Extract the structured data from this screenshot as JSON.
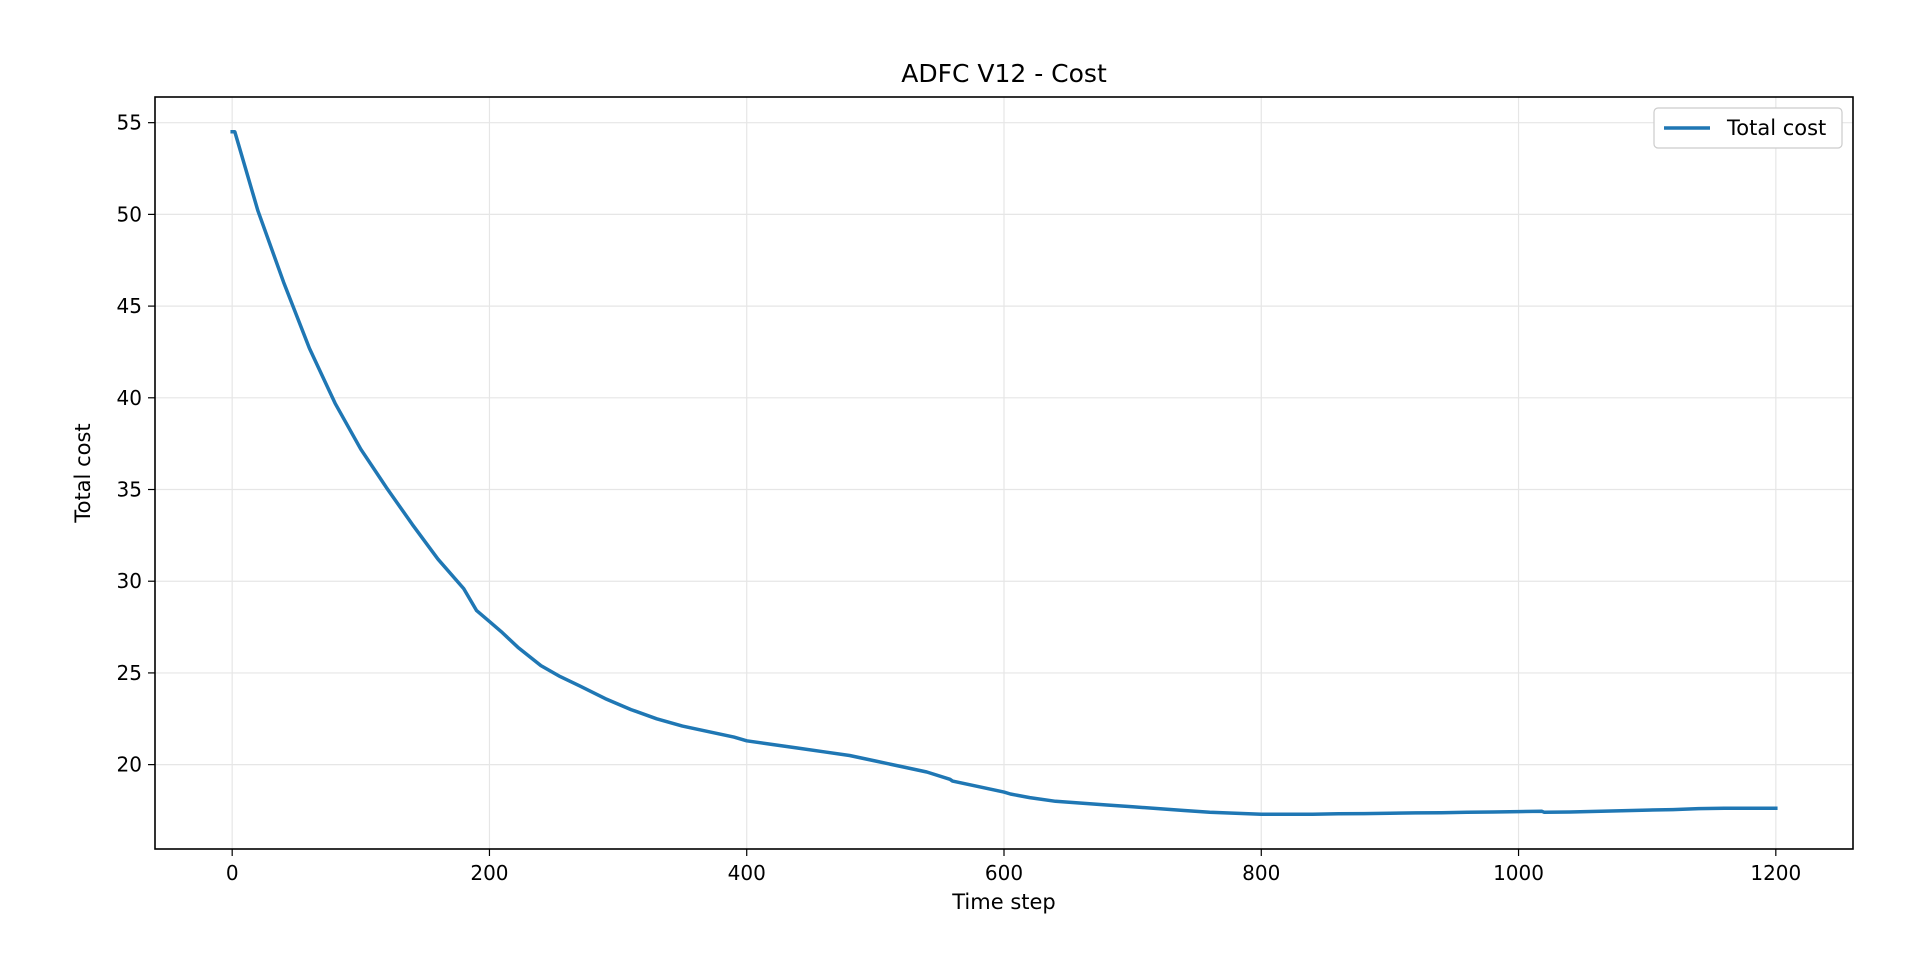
{
  "chart_data": {
    "type": "line",
    "title": "ADFC V12 - Cost",
    "xlabel": "Time step",
    "ylabel": "Total cost",
    "xlim": [
      -60,
      1260
    ],
    "ylim": [
      15.4,
      56.4
    ],
    "xticks": [
      0,
      200,
      400,
      600,
      800,
      1000,
      1200
    ],
    "xtick_labels": [
      "0",
      "200",
      "400",
      "600",
      "800",
      "1000",
      "1200"
    ],
    "yticks": [
      20,
      25,
      30,
      35,
      40,
      45,
      50,
      55
    ],
    "ytick_labels": [
      "20",
      "25",
      "30",
      "35",
      "40",
      "45",
      "50",
      "55"
    ],
    "grid": true,
    "legend_position": "top-right",
    "series": [
      {
        "name": "Total cost",
        "color": "#1f77b4",
        "x": [
          0,
          2,
          20,
          40,
          60,
          80,
          100,
          120,
          140,
          160,
          180,
          190,
          200,
          210,
          222,
          240,
          255,
          270,
          290,
          310,
          330,
          350,
          370,
          390,
          400,
          420,
          440,
          460,
          480,
          500,
          520,
          540,
          558,
          560,
          580,
          600,
          605,
          620,
          640,
          660,
          680,
          700,
          720,
          740,
          760,
          780,
          800,
          820,
          840,
          860,
          880,
          900,
          920,
          940,
          960,
          980,
          1000,
          1018,
          1020,
          1040,
          1060,
          1080,
          1100,
          1120,
          1140,
          1160,
          1180,
          1200
        ],
        "y": [
          54.5,
          54.5,
          50.2,
          46.3,
          42.7,
          39.7,
          37.2,
          35.1,
          33.1,
          31.2,
          29.6,
          28.4,
          27.8,
          27.2,
          26.4,
          25.4,
          24.8,
          24.3,
          23.6,
          23.0,
          22.5,
          22.1,
          21.8,
          21.5,
          21.3,
          21.1,
          20.9,
          20.7,
          20.5,
          20.2,
          19.9,
          19.6,
          19.2,
          19.1,
          18.8,
          18.5,
          18.4,
          18.2,
          18.0,
          17.9,
          17.8,
          17.7,
          17.6,
          17.5,
          17.4,
          17.35,
          17.3,
          17.3,
          17.3,
          17.32,
          17.33,
          17.35,
          17.37,
          17.38,
          17.4,
          17.42,
          17.44,
          17.46,
          17.4,
          17.42,
          17.45,
          17.48,
          17.52,
          17.55,
          17.6,
          17.62,
          17.62,
          17.62
        ]
      }
    ]
  }
}
